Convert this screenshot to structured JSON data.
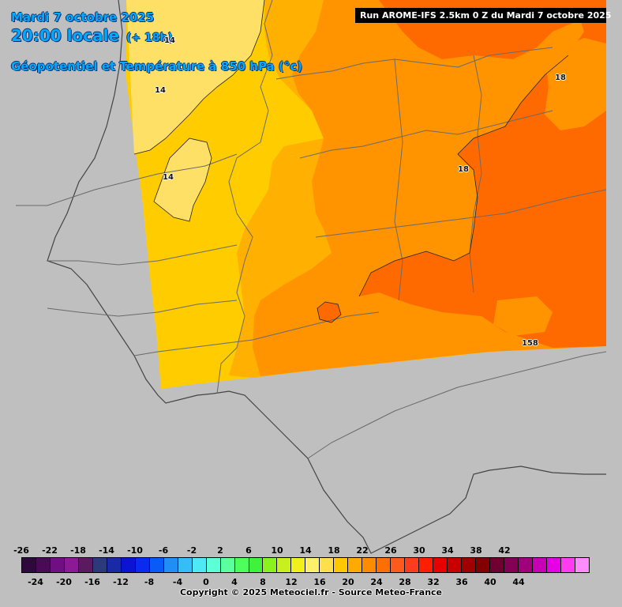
{
  "header": {
    "date": "Mardi 7 octobre 2025",
    "time": "20:00 locale",
    "lead": "(+ 18h)",
    "subtitle": "Géopotentiel et Température à 850 hPa (°c)",
    "run": "Run AROME-IFS 2.5km 0 Z du Mardi 7 octobre 2025"
  },
  "map": {
    "temperature_labels": [
      "14",
      "14",
      "14",
      "18",
      "18"
    ],
    "geopotential_label": "158"
  },
  "legend": {
    "top_ticks": [
      "-26",
      "-22",
      "-18",
      "-14",
      "-10",
      "-6",
      "-2",
      "2",
      "6",
      "10",
      "14",
      "18",
      "22",
      "26",
      "30",
      "34",
      "38",
      "42"
    ],
    "bottom_ticks": [
      "-24",
      "-20",
      "-16",
      "-12",
      "-8",
      "-4",
      "0",
      "4",
      "8",
      "12",
      "16",
      "20",
      "24",
      "28",
      "32",
      "36",
      "40",
      "44"
    ],
    "colors": [
      "#2e0a3c",
      "#4b0a55",
      "#6f0f82",
      "#8a1a96",
      "#5a1a5f",
      "#2a3a7a",
      "#1a2aa6",
      "#0a14d2",
      "#0a2af0",
      "#0a5af5",
      "#1f8ef5",
      "#35bdf5",
      "#4fe8f5",
      "#5cffd6",
      "#5cff9e",
      "#4cff5c",
      "#3ef23e",
      "#8cf21e",
      "#c8f01e",
      "#f0f01e",
      "#fff06a",
      "#ffe04a",
      "#ffc800",
      "#ffaa00",
      "#ff8c00",
      "#ff6e00",
      "#ff5a1e",
      "#ff3c1e",
      "#ff1e00",
      "#e60000",
      "#c80000",
      "#a00000",
      "#820000",
      "#6e0032",
      "#820055",
      "#a0007a",
      "#c800b4",
      "#e600e6",
      "#ff3cf0",
      "#ff8cff"
    ]
  },
  "footer": {
    "copyright": "Copyright © 2025 Meteociel.fr - Source Meteo-France"
  }
}
